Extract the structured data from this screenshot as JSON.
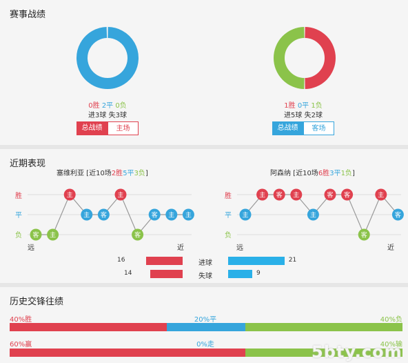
{
  "sections": {
    "record_title": "赛事战绩",
    "recent_title": "近期表现",
    "history_title": "历史交锋往绩"
  },
  "left": {
    "donut": {
      "win": 0,
      "draw": 2,
      "loss": 0
    },
    "record": {
      "win": "0胜",
      "draw": "2平",
      "loss": "0负"
    },
    "goals": "进3球  失3球",
    "btn_total": "总战绩",
    "btn_venue": "主场",
    "team_line": {
      "name": "塞维利亚 [近10场",
      "win": "2胜",
      "draw": "5平",
      "loss": "3负",
      "close": "]"
    },
    "form": [
      {
        "r": "L",
        "v": "客"
      },
      {
        "r": "L",
        "v": "主"
      },
      {
        "r": "W",
        "v": "主"
      },
      {
        "r": "D",
        "v": "主"
      },
      {
        "r": "D",
        "v": "客"
      },
      {
        "r": "W",
        "v": "主"
      },
      {
        "r": "L",
        "v": "客"
      },
      {
        "r": "D",
        "v": "客"
      },
      {
        "r": "D",
        "v": "主"
      },
      {
        "r": "D",
        "v": "主"
      }
    ],
    "goals_for": 16,
    "goals_against": 14
  },
  "right": {
    "donut": {
      "win": 1,
      "draw": 0,
      "loss": 1
    },
    "record": {
      "win": "1胜",
      "draw": "0平",
      "loss": "1负"
    },
    "goals": "进5球  失2球",
    "btn_total": "总战绩",
    "btn_venue": "客场",
    "team_line": {
      "name": "阿森纳 [近10场",
      "win": "6胜",
      "draw": "3平",
      "loss": "1负",
      "close": "]"
    },
    "form": [
      {
        "r": "D",
        "v": "主"
      },
      {
        "r": "W",
        "v": "主"
      },
      {
        "r": "W",
        "v": "客"
      },
      {
        "r": "W",
        "v": "主"
      },
      {
        "r": "D",
        "v": "主"
      },
      {
        "r": "W",
        "v": "客"
      },
      {
        "r": "W",
        "v": "客"
      },
      {
        "r": "L",
        "v": "客"
      },
      {
        "r": "W",
        "v": "主"
      },
      {
        "r": "D",
        "v": "客"
      }
    ],
    "goals_for": 21,
    "goals_against": 9
  },
  "axis": {
    "win": "胜",
    "draw": "平",
    "loss": "负",
    "far": "远",
    "near": "近"
  },
  "compare": {
    "goals_for_label": "进球",
    "goals_against_label": "失球",
    "max": 25
  },
  "history": {
    "row1": {
      "win_pct": 40,
      "draw_pct": 20,
      "loss_pct": 40,
      "win_label": "40%胜",
      "draw_label": "20%平",
      "loss_label": "40%负"
    },
    "row2": {
      "a_pct": 60,
      "b_pct": 0,
      "c_pct": 40,
      "a_label": "60%赢",
      "b_label": "0%走",
      "c_label": "40%输"
    }
  },
  "watermark": "5bty.com",
  "colors": {
    "red": "#e0414f",
    "blue": "#36a5dc",
    "green": "#8bc34a",
    "cyan": "#2ab0e8"
  }
}
